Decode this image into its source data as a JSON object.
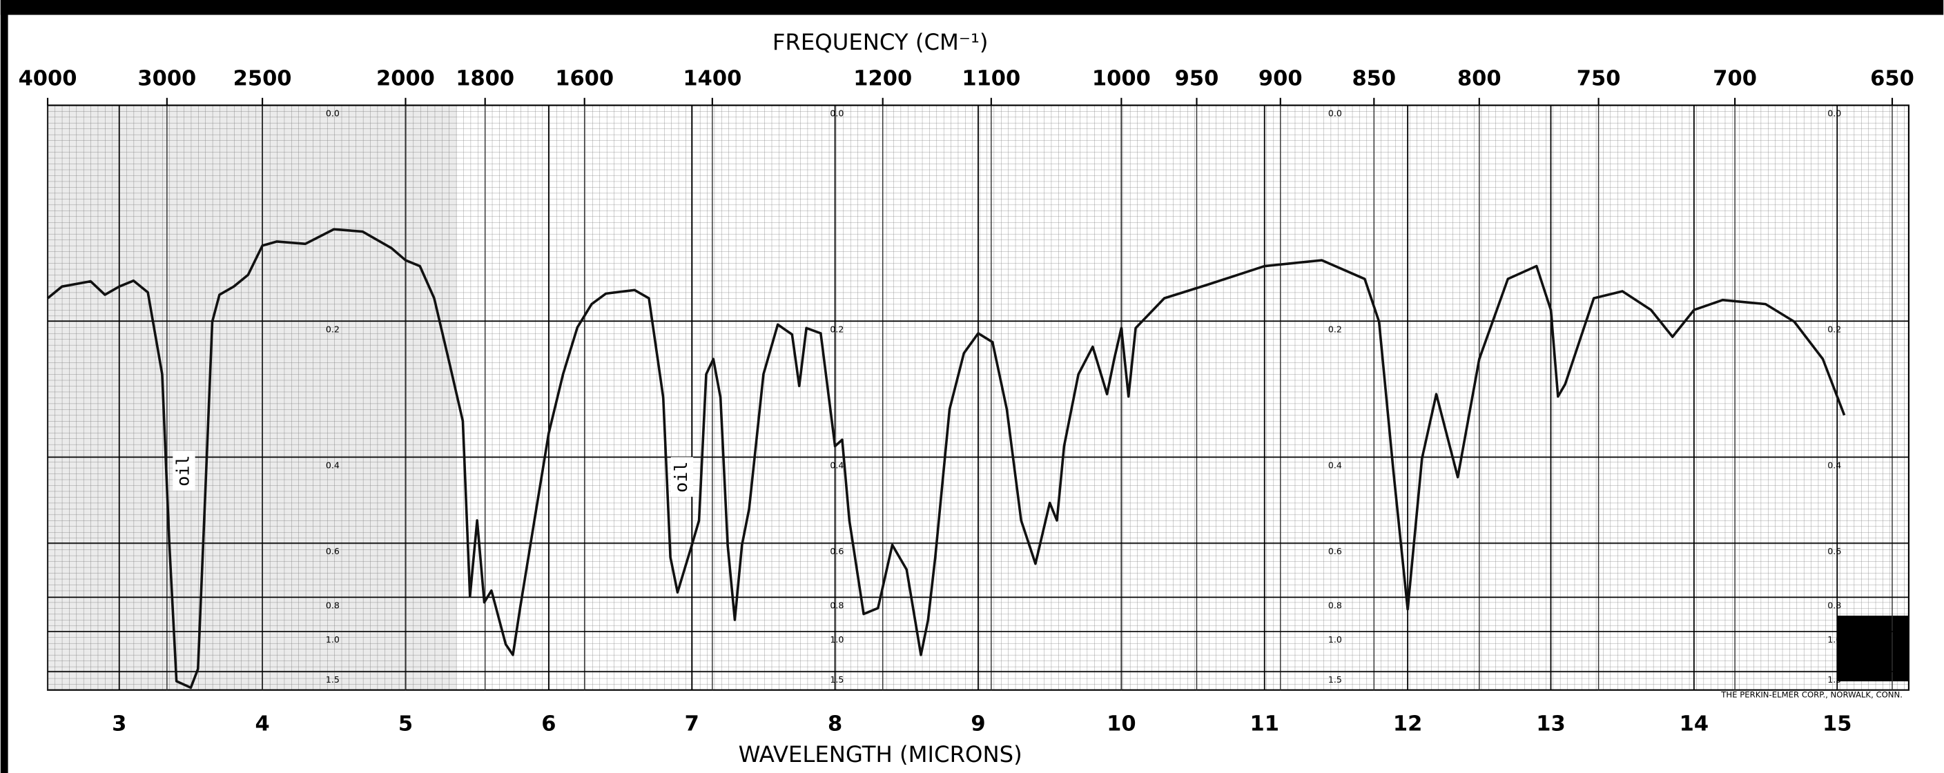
{
  "chart_data": {
    "type": "line",
    "x2label": "FREQUENCY (CM⁻¹)",
    "xlabel": "WAVELENGTH (MICRONS)",
    "footer": "THE PERKIN-ELMER CORP., NORWALK, CONN.",
    "annotations": [
      "oil",
      "oil"
    ],
    "color": "#111111",
    "xlim": [
      2.5,
      15.5
    ],
    "xticks": [
      3,
      4,
      5,
      6,
      7,
      8,
      9,
      10,
      11,
      12,
      13,
      14,
      15
    ],
    "x2ticks": [
      4000,
      3000,
      2500,
      2000,
      1800,
      1600,
      1400,
      1200,
      1100,
      1000,
      950,
      900,
      850,
      800,
      750,
      700,
      650
    ],
    "ylim": [
      0,
      100
    ],
    "yticks": [
      {
        "value": 0,
        "label": "0.0"
      },
      0.2,
      0.4,
      0.6,
      0.8,
      {
        "value": 1,
        "label": "1.0"
      },
      1.5
    ],
    "grid": true,
    "x": [
      2.5,
      2.6,
      2.8,
      2.9,
      3.0,
      3.1,
      3.2,
      3.3,
      3.35,
      3.4,
      3.5,
      3.55,
      3.6,
      3.65,
      3.7,
      3.8,
      3.9,
      4.0,
      4.1,
      4.3,
      4.5,
      4.7,
      4.9,
      5.0,
      5.1,
      5.2,
      5.3,
      5.4,
      5.45,
      5.5,
      5.55,
      5.6,
      5.7,
      5.75,
      5.8,
      5.9,
      6.0,
      6.1,
      6.2,
      6.3,
      6.4,
      6.6,
      6.7,
      6.8,
      6.85,
      6.9,
      7.0,
      7.05,
      7.1,
      7.15,
      7.2,
      7.25,
      7.3,
      7.35,
      7.4,
      7.5,
      7.6,
      7.7,
      7.75,
      7.8,
      7.9,
      8.0,
      8.05,
      8.1,
      8.2,
      8.3,
      8.4,
      8.5,
      8.6,
      8.65,
      8.7,
      8.8,
      8.9,
      9.0,
      9.1,
      9.2,
      9.3,
      9.4,
      9.5,
      9.55,
      9.6,
      9.7,
      9.8,
      9.9,
      9.95,
      10.0,
      10.05,
      10.1,
      10.3,
      10.6,
      11.0,
      11.4,
      11.7,
      11.8,
      11.9,
      12.0,
      12.1,
      12.2,
      12.35,
      12.5,
      12.7,
      12.9,
      13.0,
      13.05,
      13.1,
      13.3,
      13.5,
      13.7,
      13.85,
      14.0,
      14.2,
      14.5,
      14.7,
      14.9,
      15.05
    ],
    "values": [
      67,
      69,
      69.9,
      67.6,
      69,
      70,
      68,
      54,
      25,
      1.5,
      0.4,
      3.6,
      33,
      63,
      67.6,
      69,
      71,
      76,
      76.7,
      76.3,
      78.8,
      78.4,
      75.6,
      73.5,
      72.5,
      67,
      56.6,
      46,
      16,
      29,
      15,
      17,
      7.8,
      6,
      14,
      29,
      43.9,
      54,
      62,
      66,
      67.8,
      68.4,
      67,
      50,
      22.7,
      16.7,
      24.8,
      29,
      54,
      56.6,
      50,
      24.8,
      12,
      24.8,
      31,
      54,
      62.5,
      60.8,
      52,
      61.9,
      61,
      41.7,
      42.8,
      29,
      13,
      14,
      24.8,
      20.6,
      6,
      12,
      22.7,
      48,
      57.6,
      61,
      59.5,
      48,
      29,
      21.6,
      32,
      29,
      41.7,
      54,
      58.7,
      50.6,
      56.6,
      61.9,
      50.2,
      61.9,
      67,
      69.3,
      72.5,
      73.5,
      70.3,
      63,
      37.5,
      13.8,
      39.6,
      50.6,
      36.4,
      56.6,
      70.3,
      72.5,
      65,
      50.2,
      52.3,
      67,
      68.2,
      65,
      60.4,
      65,
      66.7,
      66,
      63,
      56.6,
      47
    ]
  }
}
